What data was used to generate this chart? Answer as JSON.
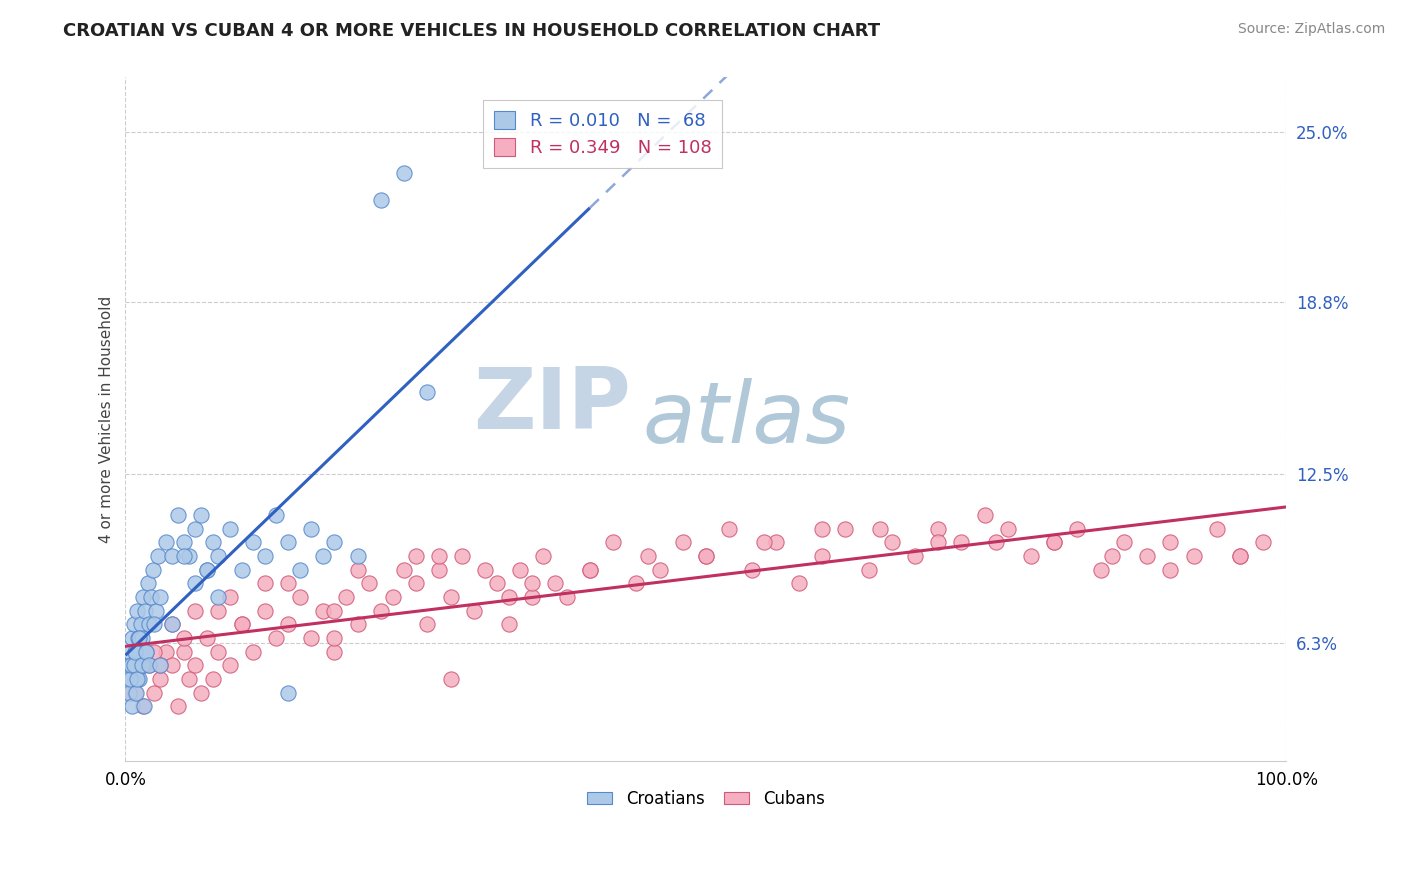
{
  "title": "CROATIAN VS CUBAN 4 OR MORE VEHICLES IN HOUSEHOLD CORRELATION CHART",
  "source": "Source: ZipAtlas.com",
  "ylabel": "4 or more Vehicles in Household",
  "xmin": 0.0,
  "xmax": 100.0,
  "ymin": 2.0,
  "ymax": 27.0,
  "yticks": [
    6.3,
    12.5,
    18.8,
    25.0
  ],
  "ytick_labels": [
    "6.3%",
    "12.5%",
    "18.8%",
    "25.0%"
  ],
  "xtick_labels": [
    "0.0%",
    "100.0%"
  ],
  "croatian_color": "#adc9e8",
  "cuban_color": "#f5afc0",
  "croatian_edge": "#5588cc",
  "cuban_edge": "#d05878",
  "trendline_croatian": "#3060c0",
  "trendline_cuban": "#c03060",
  "legend_color_croatian": "#3060c0",
  "legend_color_cuban": "#c03060",
  "watermark_zip_color": "#c5d5e5",
  "watermark_atlas_color": "#b0c8d8",
  "grid_color": "#cccccc",
  "title_color": "#222222",
  "source_color": "#888888",
  "cr_x": [
    0.3,
    0.4,
    0.5,
    0.6,
    0.7,
    0.8,
    0.9,
    1.0,
    1.1,
    1.2,
    1.3,
    1.4,
    1.5,
    1.6,
    1.7,
    1.8,
    1.9,
    2.0,
    2.2,
    2.4,
    2.6,
    2.8,
    3.0,
    3.5,
    4.0,
    4.5,
    5.0,
    5.5,
    6.0,
    6.5,
    7.0,
    7.5,
    8.0,
    9.0,
    10.0,
    11.0,
    12.0,
    13.0,
    14.0,
    15.0,
    16.0,
    17.0,
    18.0,
    20.0,
    22.0,
    24.0,
    26.0,
    0.3,
    0.4,
    0.5,
    0.6,
    0.7,
    0.8,
    0.9,
    1.0,
    1.2,
    1.4,
    1.6,
    1.8,
    2.0,
    2.5,
    3.0,
    4.0,
    5.0,
    6.0,
    7.0,
    8.0,
    14.0
  ],
  "cr_y": [
    5.5,
    6.0,
    5.0,
    6.5,
    7.0,
    5.5,
    6.0,
    7.5,
    6.5,
    5.0,
    7.0,
    6.5,
    8.0,
    5.5,
    7.5,
    6.0,
    8.5,
    7.0,
    8.0,
    9.0,
    7.5,
    9.5,
    8.0,
    10.0,
    9.5,
    11.0,
    10.0,
    9.5,
    10.5,
    11.0,
    9.0,
    10.0,
    9.5,
    10.5,
    9.0,
    10.0,
    9.5,
    11.0,
    10.0,
    9.0,
    10.5,
    9.5,
    10.0,
    9.5,
    22.5,
    23.5,
    15.5,
    4.5,
    5.0,
    5.5,
    4.0,
    5.5,
    6.0,
    4.5,
    5.0,
    6.5,
    5.5,
    4.0,
    6.0,
    5.5,
    7.0,
    5.5,
    7.0,
    9.5,
    8.5,
    9.0,
    8.0,
    4.5
  ],
  "cu_x": [
    0.5,
    1.0,
    1.5,
    2.0,
    2.5,
    3.0,
    3.5,
    4.0,
    4.5,
    5.0,
    5.5,
    6.0,
    6.5,
    7.0,
    7.5,
    8.0,
    9.0,
    10.0,
    11.0,
    12.0,
    13.0,
    14.0,
    15.0,
    16.0,
    17.0,
    18.0,
    19.0,
    20.0,
    21.0,
    22.0,
    23.0,
    24.0,
    25.0,
    26.0,
    27.0,
    28.0,
    29.0,
    30.0,
    31.0,
    32.0,
    33.0,
    34.0,
    35.0,
    36.0,
    37.0,
    38.0,
    40.0,
    42.0,
    44.0,
    46.0,
    48.0,
    50.0,
    52.0,
    54.0,
    56.0,
    58.0,
    60.0,
    62.0,
    64.0,
    66.0,
    68.0,
    70.0,
    72.0,
    74.0,
    76.0,
    78.0,
    80.0,
    82.0,
    84.0,
    86.0,
    88.0,
    90.0,
    92.0,
    94.0,
    96.0,
    98.0,
    3.0,
    5.0,
    8.0,
    12.0,
    18.0,
    25.0,
    35.0,
    45.0,
    55.0,
    65.0,
    75.0,
    85.0,
    0.8,
    1.5,
    2.5,
    4.0,
    6.0,
    9.0,
    14.0,
    20.0,
    27.0,
    33.0,
    40.0,
    50.0,
    60.0,
    70.0,
    80.0,
    90.0,
    96.0,
    28.0,
    18.0,
    10.0
  ],
  "cu_y": [
    4.5,
    5.0,
    4.0,
    5.5,
    4.5,
    5.0,
    6.0,
    5.5,
    4.0,
    6.0,
    5.0,
    5.5,
    4.5,
    6.5,
    5.0,
    6.0,
    5.5,
    7.0,
    6.0,
    7.5,
    6.5,
    7.0,
    8.0,
    6.5,
    7.5,
    6.0,
    8.0,
    7.0,
    8.5,
    7.5,
    8.0,
    9.0,
    8.5,
    7.0,
    9.0,
    8.0,
    9.5,
    7.5,
    9.0,
    8.5,
    7.0,
    9.0,
    8.0,
    9.5,
    8.5,
    8.0,
    9.0,
    10.0,
    8.5,
    9.0,
    10.0,
    9.5,
    10.5,
    9.0,
    10.0,
    8.5,
    9.5,
    10.5,
    9.0,
    10.0,
    9.5,
    10.5,
    10.0,
    11.0,
    10.5,
    9.5,
    10.0,
    10.5,
    9.0,
    10.0,
    9.5,
    10.0,
    9.5,
    10.5,
    9.5,
    10.0,
    5.5,
    6.5,
    7.5,
    8.5,
    7.5,
    9.5,
    8.5,
    9.5,
    10.0,
    10.5,
    10.0,
    9.5,
    4.5,
    5.5,
    6.0,
    7.0,
    7.5,
    8.0,
    8.5,
    9.0,
    9.5,
    8.0,
    9.0,
    9.5,
    10.5,
    10.0,
    10.0,
    9.0,
    9.5,
    5.0,
    6.5,
    7.0
  ]
}
